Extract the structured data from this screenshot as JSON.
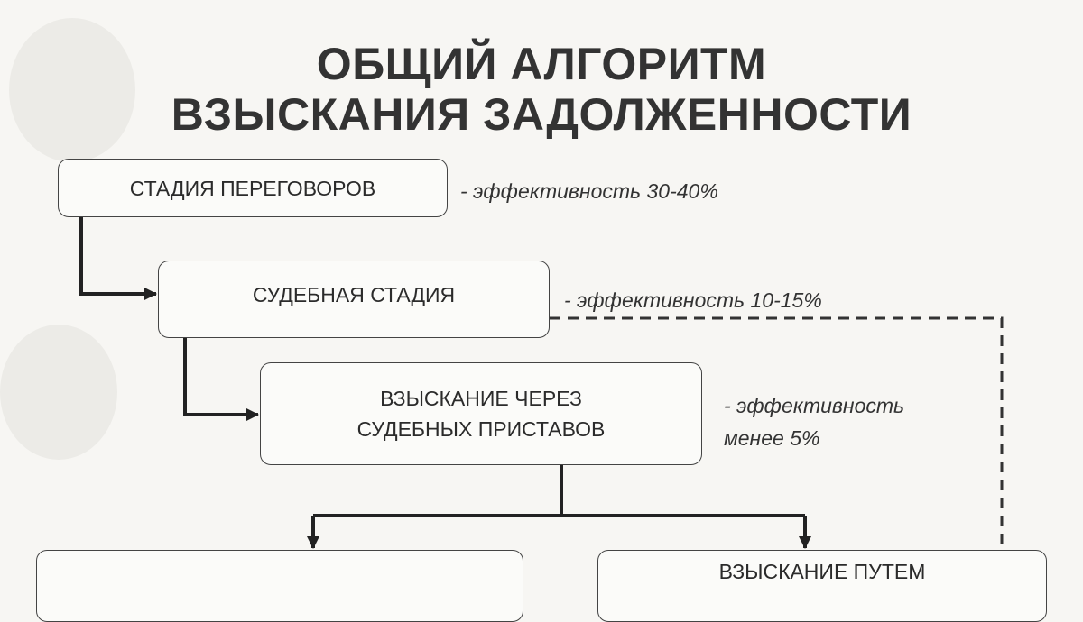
{
  "title": {
    "line1": "ОБЩИЙ АЛГОРИТМ",
    "line2": "ВЗЫСКАНИЯ ЗАДОЛЖЕННОСТИ"
  },
  "stages": [
    {
      "label": "СТАДИЯ ПЕРЕГОВОРОВ",
      "note": "- эффективность 30-40%"
    },
    {
      "label": "СУДЕБНАЯ СТАДИЯ",
      "note": "- эффективность 10-15%"
    },
    {
      "label_line1": "ВЗЫСКАНИЕ ЧЕРЕЗ",
      "label_line2": "СУДЕБНЫХ ПРИСТАВОВ",
      "note_line1": "- эффективность",
      "note_line2": "менее 5%"
    },
    {
      "label": ""
    },
    {
      "label": "ВЗЫСКАНИЕ ПУТЕМ"
    }
  ]
}
